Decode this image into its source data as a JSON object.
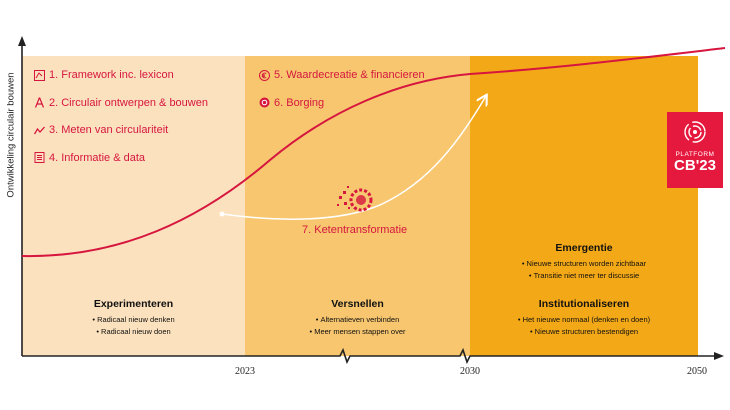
{
  "y_axis_label": "Ontwikkeling circulair bouwen",
  "pillars": [
    {
      "label": "1. Framework inc. lexicon",
      "icon": "framework-icon"
    },
    {
      "label": "2. Circulair ontwerpen & bouwen",
      "icon": "design-icon"
    },
    {
      "label": "3. Meten van circulariteit",
      "icon": "chart-line-icon"
    },
    {
      "label": "4. Informatie & data",
      "icon": "data-icon"
    },
    {
      "label": "5. Waardecreatie & financieren",
      "icon": "euro-icon"
    },
    {
      "label": "6. Borging",
      "icon": "seal-icon"
    }
  ],
  "ketentransformatie": {
    "label": "7. Ketentransformatie",
    "icon": "gear-puzzle-icon"
  },
  "phases": {
    "experimenteren": {
      "title": "Experimenteren",
      "items": [
        "Radicaal nieuw denken",
        "Radicaal nieuw doen"
      ]
    },
    "versnellen": {
      "title": "Versnellen",
      "items": [
        "Alternatieven verbinden",
        "Meer mensen stappen over"
      ]
    },
    "emergentie": {
      "title": "Emergentie",
      "items": [
        "Nieuwe structuren worden zichtbaar",
        "Transitie niet meer ter discussie"
      ]
    },
    "institutionaliseren": {
      "title": "Institutionaliseren",
      "items": [
        "Het nieuwe normaal (denken en doen)",
        "Nieuwe structuren bestendigen"
      ]
    }
  },
  "years": [
    "2023",
    "2030",
    "2050"
  ],
  "logo": {
    "line1": "PLATFORM",
    "line2": "CB'23"
  },
  "colors": {
    "zone_1": "#fbe1bd",
    "zone_2": "#f7c66f",
    "zone_3": "#f3a817",
    "accent_red": "#d6163f",
    "logo_red": "#e5193d"
  }
}
